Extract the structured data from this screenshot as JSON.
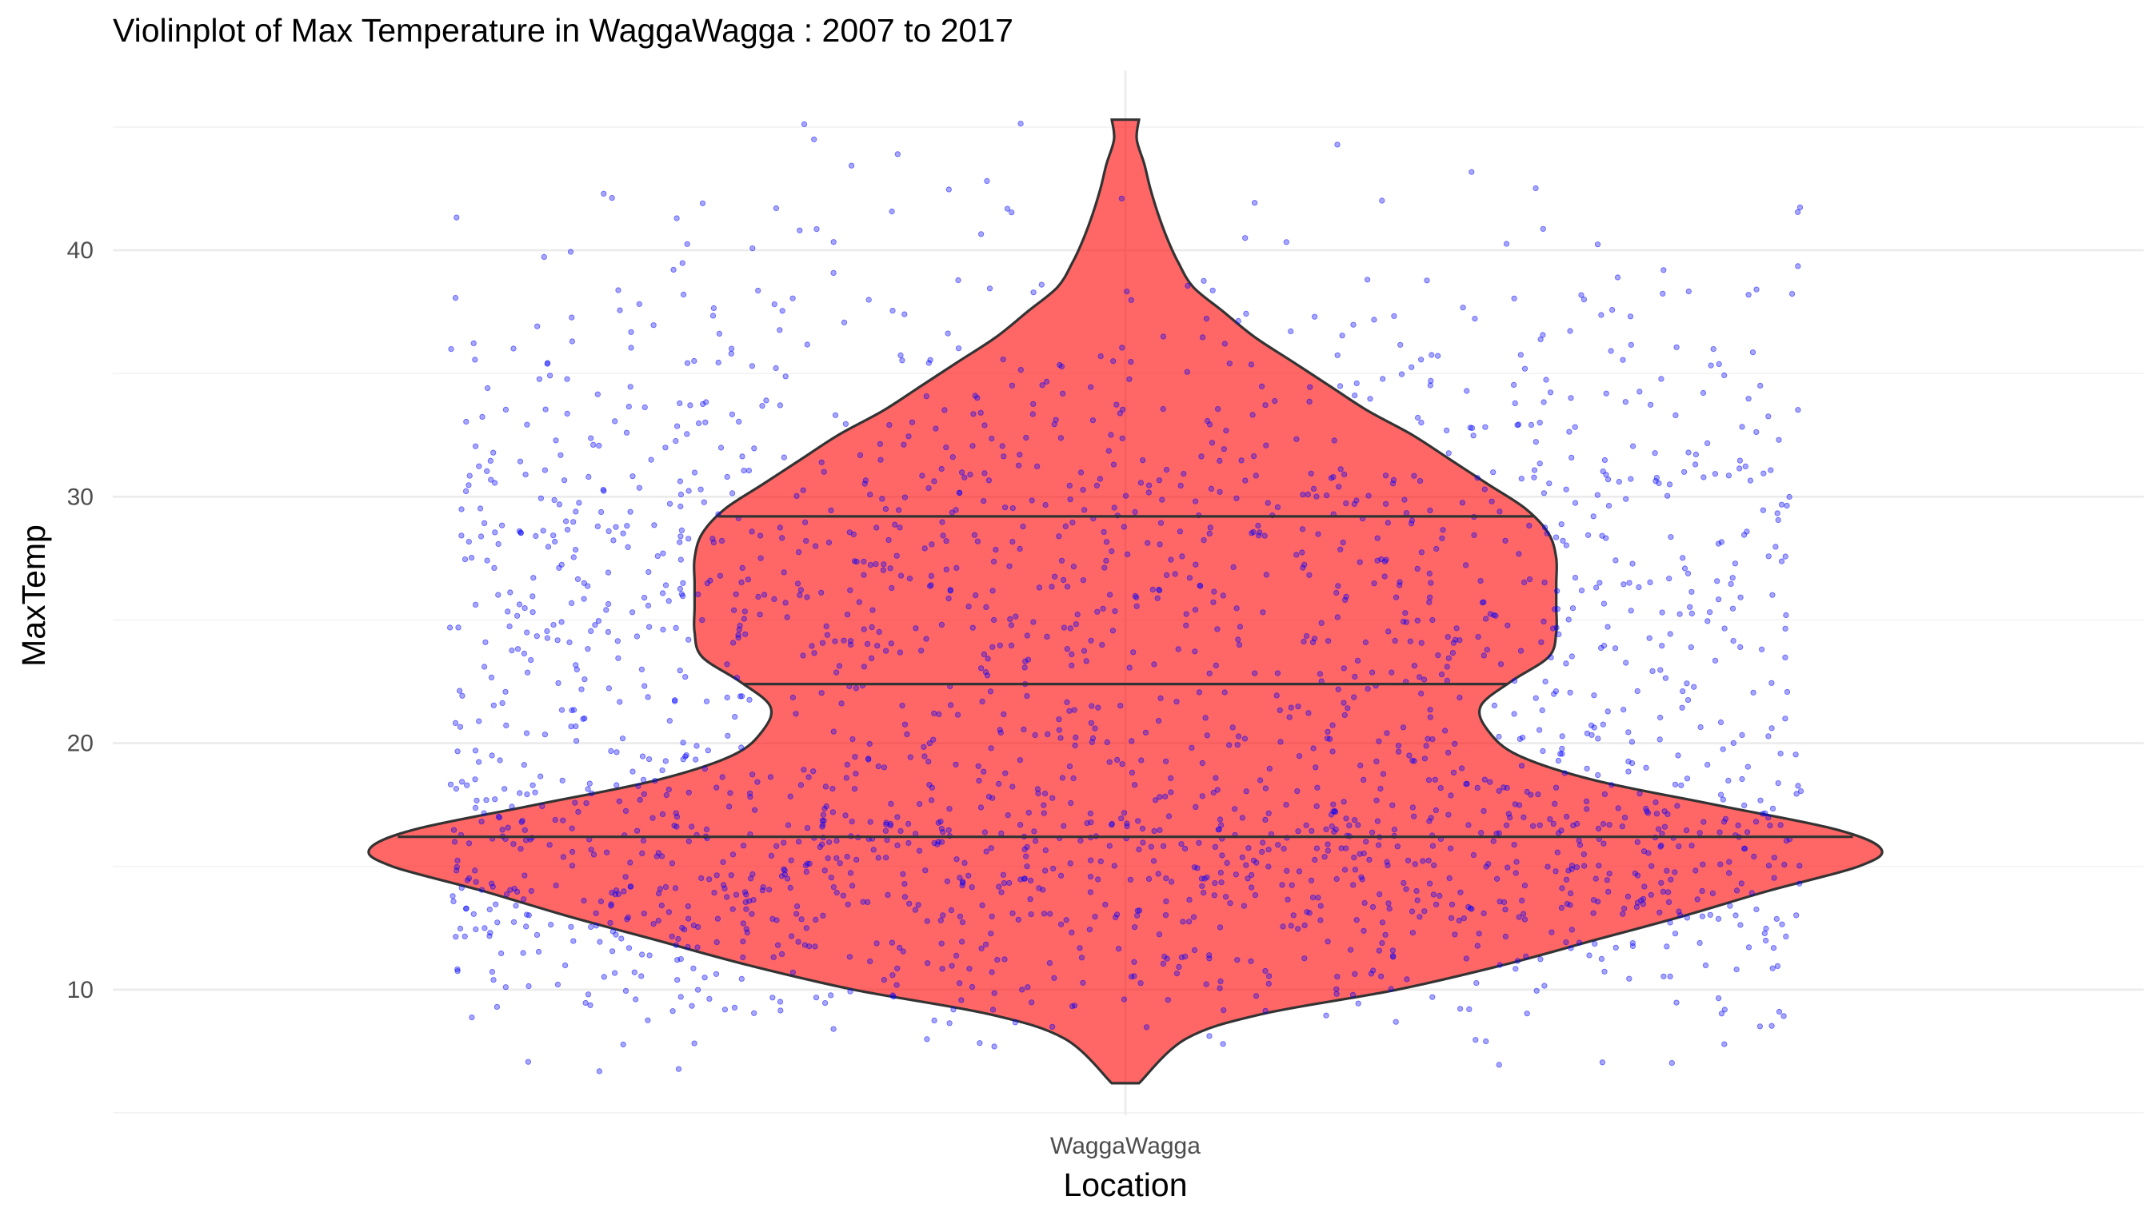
{
  "chart_data": {
    "type": "violin",
    "title": "Violinplot of Max Temperature in WaggaWagga : 2007 to 2017",
    "xlabel": "Location",
    "ylabel": "MaxTemp",
    "categories": [
      "WaggaWagga"
    ],
    "ylim": [
      4.9,
      47.3
    ],
    "yticks": [
      10,
      20,
      30,
      40
    ],
    "ytick_labels": [
      "10",
      "20",
      "30",
      "40"
    ],
    "grid": true,
    "legend": "none",
    "fill_color": "#ff0000",
    "fill_opacity": 0.6,
    "outline_color": "#333333",
    "point_color": "#0000ff",
    "draw_quantiles": [
      {
        "q": 0.25,
        "value": 16.2
      },
      {
        "q": 0.5,
        "value": 22.4
      },
      {
        "q": 0.75,
        "value": 29.2
      }
    ],
    "density": {
      "y": [
        6.2,
        8,
        9,
        10,
        11,
        12,
        13,
        14,
        15,
        15.7,
        16.5,
        17.5,
        18.5,
        19.5,
        20.5,
        21.5,
        22.5,
        23.5,
        24.5,
        25.5,
        26.5,
        27.5,
        28.5,
        29.5,
        30.5,
        31.5,
        32.5,
        33.5,
        34.5,
        35.5,
        36.5,
        37.5,
        38.5,
        39.5,
        40.5,
        41.5,
        42.5,
        43.5,
        44.5,
        45.3
      ],
      "halfwidth": [
        0.018,
        0.08,
        0.18,
        0.36,
        0.5,
        0.62,
        0.74,
        0.85,
        0.97,
        1.0,
        0.94,
        0.78,
        0.62,
        0.52,
        0.48,
        0.47,
        0.51,
        0.56,
        0.57,
        0.57,
        0.57,
        0.57,
        0.56,
        0.53,
        0.48,
        0.43,
        0.38,
        0.32,
        0.27,
        0.22,
        0.17,
        0.13,
        0.09,
        0.07,
        0.055,
        0.043,
        0.033,
        0.025,
        0.015,
        0.018
      ]
    },
    "jitter": {
      "n": 2300,
      "min": 6.2,
      "max": 45.3,
      "width": 0.4
    }
  }
}
